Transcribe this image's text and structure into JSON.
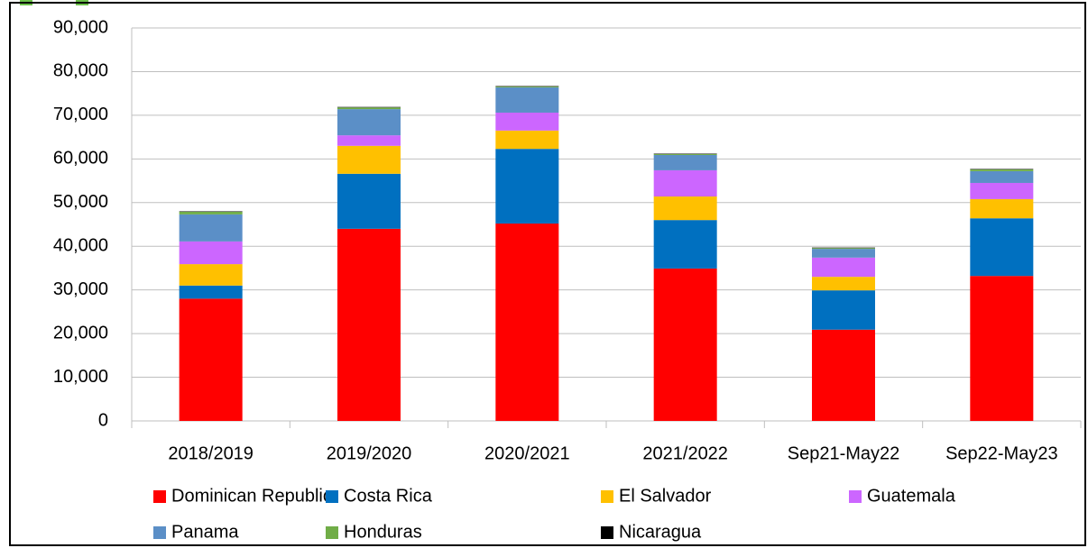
{
  "chart_data": {
    "type": "stacked_bar",
    "categories": [
      "2018/2019",
      "2019/2020",
      "2020/2021",
      "2021/2022",
      "Sep21-May22",
      "Sep22-May23"
    ],
    "series": [
      {
        "name": "Dominican Republic",
        "color": "#ff0000",
        "values": [
          28000,
          44000,
          45200,
          34900,
          20900,
          33200
        ]
      },
      {
        "name": "Costa Rica",
        "color": "#0070c0",
        "values": [
          3000,
          12600,
          17100,
          11100,
          9000,
          13200
        ]
      },
      {
        "name": "El Salvador",
        "color": "#ffc000",
        "values": [
          4900,
          6400,
          4200,
          5400,
          3100,
          4400
        ]
      },
      {
        "name": "Guatemala",
        "color": "#cc66ff",
        "values": [
          5200,
          2400,
          4100,
          6000,
          4400,
          3700
        ]
      },
      {
        "name": "Panama",
        "color": "#5b8fc7",
        "values": [
          6200,
          6000,
          5800,
          3500,
          2000,
          2700
        ]
      },
      {
        "name": "Honduras",
        "color": "#70ad47",
        "values": [
          600,
          400,
          200,
          200,
          200,
          400
        ]
      },
      {
        "name": "Nicaragua",
        "color": "#000000",
        "values": [
          100,
          100,
          100,
          100,
          100,
          100
        ]
      }
    ],
    "ylim": [
      0,
      90000
    ],
    "yticks": [
      0,
      {
        "value": 10000,
        "label": "10,000"
      },
      {
        "value": 20000,
        "label": "20,000"
      },
      {
        "value": 30000,
        "label": "30,000"
      },
      {
        "value": 40000,
        "label": "40,000"
      },
      {
        "value": 50000,
        "label": "50,000"
      },
      {
        "value": 60000,
        "label": "60,000"
      },
      {
        "value": 70000,
        "label": "70,000"
      },
      {
        "value": 80000,
        "label": "80,000"
      },
      {
        "value": 90000,
        "label": "90,000"
      }
    ],
    "grid": true,
    "legend": "bottom"
  }
}
